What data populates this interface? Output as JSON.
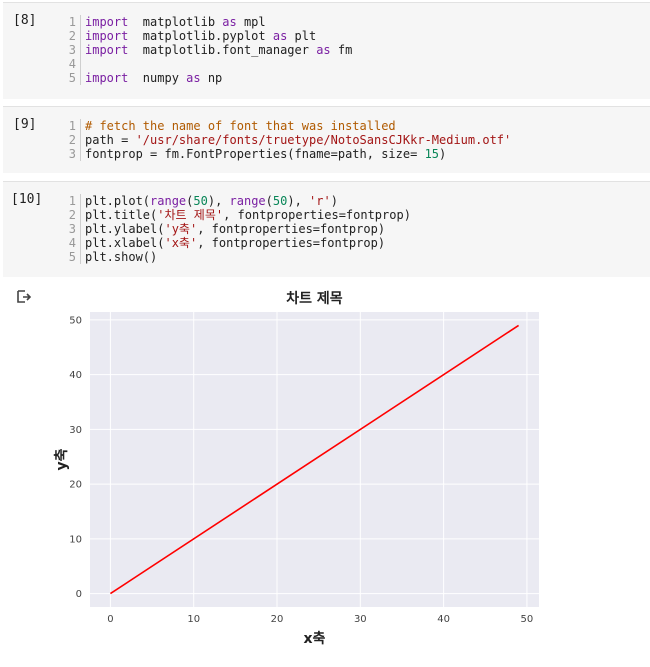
{
  "cells": [
    {
      "count": "[8]",
      "lines": [
        [
          [
            "kw",
            "import"
          ],
          [
            "",
            "  matplotlib "
          ],
          [
            "kw",
            "as"
          ],
          [
            "",
            " mpl"
          ]
        ],
        [
          [
            "kw",
            "import"
          ],
          [
            "",
            "  matplotlib.pyplot "
          ],
          [
            "kw",
            "as"
          ],
          [
            "",
            " plt"
          ]
        ],
        [
          [
            "kw",
            "import"
          ],
          [
            "",
            "  matplotlib.font_manager "
          ],
          [
            "kw",
            "as"
          ],
          [
            "",
            " fm"
          ]
        ],
        [
          [
            "",
            ""
          ]
        ],
        [
          [
            "kw",
            "import"
          ],
          [
            "",
            "  numpy "
          ],
          [
            "kw",
            "as"
          ],
          [
            "",
            " np"
          ]
        ]
      ]
    },
    {
      "count": "[9]",
      "lines": [
        [
          [
            "com",
            "# fetch the name of font that was installed"
          ]
        ],
        [
          [
            "",
            "path = "
          ],
          [
            "str",
            "'/usr/share/fonts/truetype/NotoSansCJKkr-Medium.otf'"
          ]
        ],
        [
          [
            "",
            "fontprop = fm.FontProperties(fname=path, size= "
          ],
          [
            "num",
            "15"
          ],
          [
            "",
            ")"
          ]
        ]
      ]
    },
    {
      "count": "[10]",
      "lines": [
        [
          [
            "",
            "plt.plot("
          ],
          [
            "kw",
            "range"
          ],
          [
            "",
            "("
          ],
          [
            "num",
            "50"
          ],
          [
            "",
            "), "
          ],
          [
            "kw",
            "range"
          ],
          [
            "",
            "("
          ],
          [
            "num",
            "50"
          ],
          [
            "",
            "), "
          ],
          [
            "str",
            "'r'"
          ],
          [
            "",
            ")"
          ]
        ],
        [
          [
            "",
            "plt.title("
          ],
          [
            "str",
            "'차트 제목'"
          ],
          [
            "",
            ", fontproperties=fontprop)"
          ]
        ],
        [
          [
            "",
            "plt.ylabel("
          ],
          [
            "str",
            "'y축'"
          ],
          [
            "",
            ", fontproperties=fontprop)"
          ]
        ],
        [
          [
            "",
            "plt.xlabel("
          ],
          [
            "str",
            "'x축'"
          ],
          [
            "",
            ", fontproperties=fontprop)"
          ]
        ],
        [
          [
            "",
            "plt.show()"
          ]
        ]
      ]
    }
  ],
  "output_icon": "output-arrow-icon",
  "chart_data": {
    "type": "line",
    "title": "차트 제목",
    "xlabel": "x축",
    "ylabel": "y축",
    "x": [
      0,
      49
    ],
    "series": [
      {
        "values": [
          0,
          49
        ],
        "color": "#ff0000"
      }
    ],
    "xlim": [
      -2.45,
      51.45
    ],
    "ylim": [
      -2.45,
      51.45
    ],
    "xticks": [
      0,
      10,
      20,
      30,
      40,
      50
    ],
    "yticks": [
      0,
      10,
      20,
      30,
      40,
      50
    ],
    "grid": true,
    "background": "#eaeaf2",
    "grid_color": "#ffffff"
  }
}
